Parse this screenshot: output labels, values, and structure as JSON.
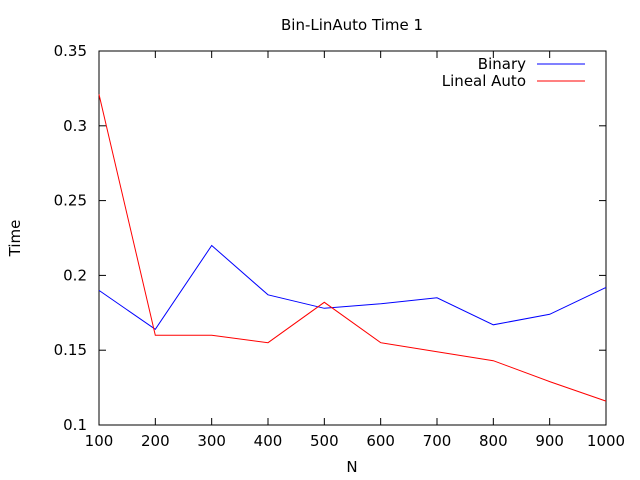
{
  "chart_data": {
    "type": "line",
    "title": "Bin-LinAuto Time 1",
    "xlabel": "N",
    "ylabel": "Time",
    "x": [
      100,
      200,
      300,
      400,
      500,
      600,
      700,
      800,
      900,
      1000
    ],
    "xlim": [
      100,
      1000
    ],
    "ylim": [
      0.1,
      0.35
    ],
    "x_ticks": [
      100,
      200,
      300,
      400,
      500,
      600,
      700,
      800,
      900,
      1000
    ],
    "x_tick_labels": [
      "100",
      "200",
      "300",
      "400",
      "500",
      "600",
      "700",
      "800",
      "900",
      "1000"
    ],
    "y_ticks": [
      0.1,
      0.15,
      0.2,
      0.25,
      0.3,
      0.35
    ],
    "y_tick_labels": [
      "0.1",
      "0.15",
      "0.2",
      "0.25",
      "0.3",
      "0.35"
    ],
    "grid": false,
    "legend_position": "top-right",
    "series": [
      {
        "name": "Binary",
        "color": "#0000ff",
        "values": [
          0.19,
          0.164,
          0.22,
          0.187,
          0.178,
          0.181,
          0.185,
          0.167,
          0.174,
          0.192
        ]
      },
      {
        "name": "Lineal Auto",
        "color": "#ff0000",
        "values": [
          0.321,
          0.16,
          0.16,
          0.155,
          0.182,
          0.155,
          0.149,
          0.143,
          0.129,
          0.116
        ]
      }
    ]
  }
}
